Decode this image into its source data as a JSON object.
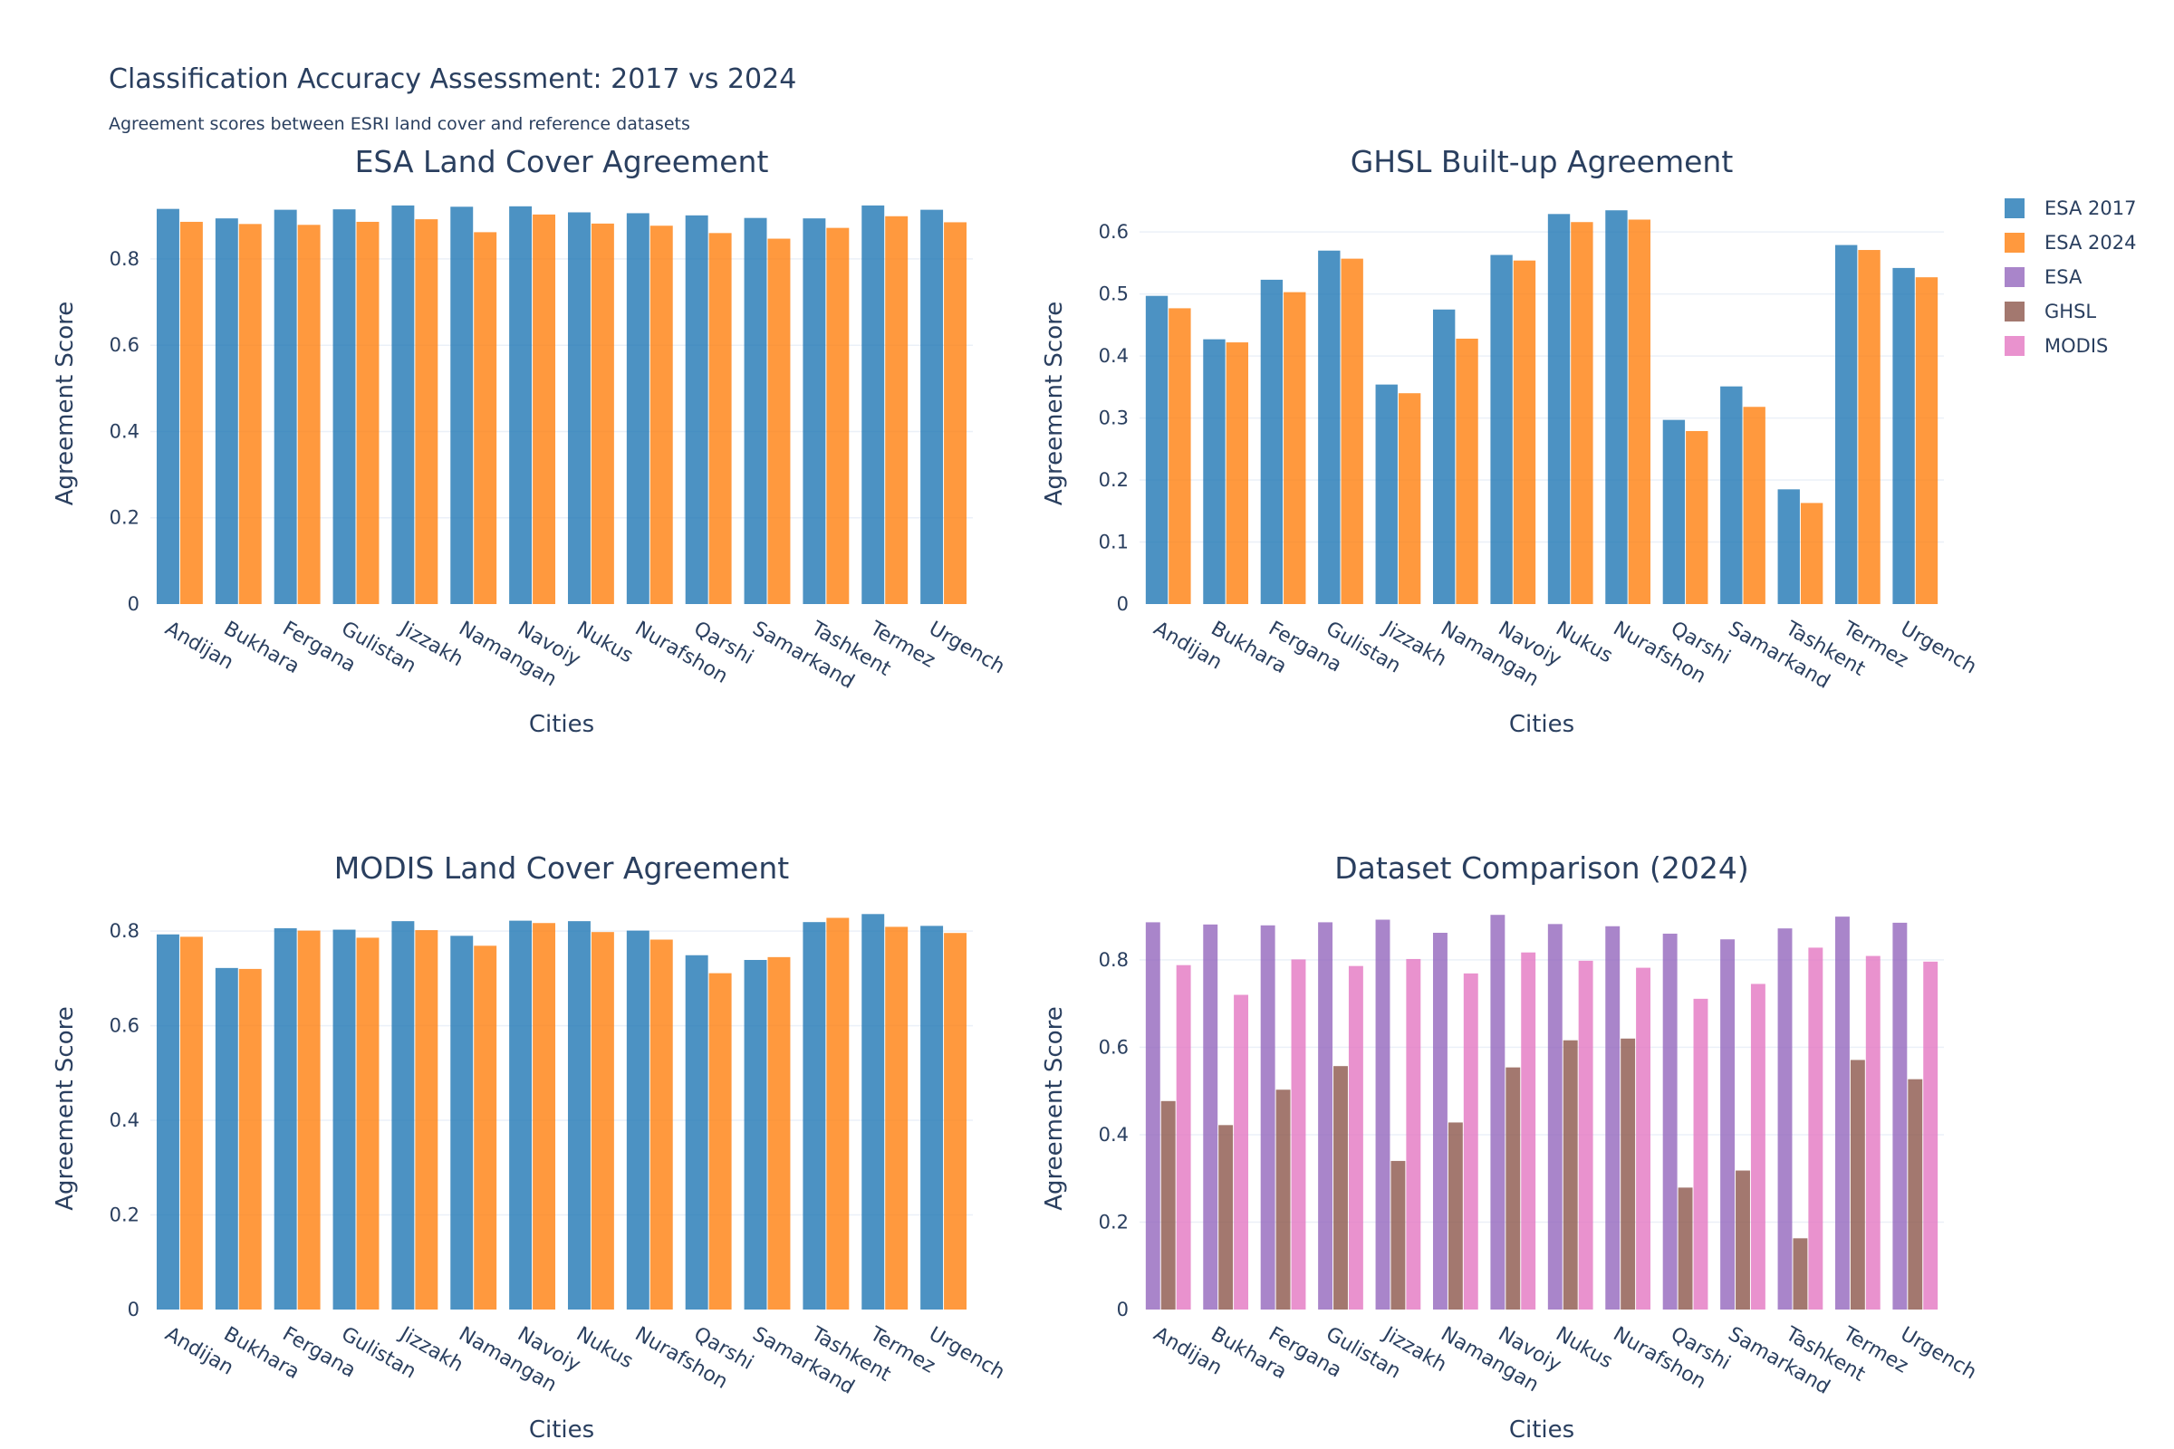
{
  "title": "Classification Accuracy Assessment: 2017 vs 2024",
  "subtitle": "Agreement scores between ESRI land cover and reference datasets",
  "colors": {
    "ESA 2017": "#1f77b4",
    "ESA 2024": "#ff7f0e",
    "ESA": "#9467bd",
    "GHSL": "#8c564b",
    "MODIS": "#e377c2"
  },
  "legend": [
    "ESA 2017",
    "ESA 2024",
    "ESA",
    "GHSL",
    "MODIS"
  ],
  "chart_data": [
    {
      "type": "bar",
      "title": "ESA Land Cover Agreement",
      "xlabel": "Cities",
      "ylabel": "Agreement Score",
      "ylim": [
        0,
        0.93
      ],
      "yticks": [
        0,
        0.2,
        0.4,
        0.6,
        0.8
      ],
      "categories": [
        "Andijan",
        "Bukhara",
        "Fergana",
        "Gulistan",
        "Jizzakh",
        "Namangan",
        "Navoiy",
        "Nukus",
        "Nurafshon",
        "Qarshi",
        "Samarkand",
        "Tashkent",
        "Termez",
        "Urgench"
      ],
      "series": [
        {
          "name": "ESA 2017",
          "values": [
            0.916,
            0.894,
            0.914,
            0.915,
            0.924,
            0.921,
            0.922,
            0.908,
            0.906,
            0.901,
            0.895,
            0.894,
            0.924,
            0.914
          ]
        },
        {
          "name": "ESA 2024",
          "values": [
            0.886,
            0.881,
            0.879,
            0.886,
            0.892,
            0.862,
            0.903,
            0.882,
            0.877,
            0.86,
            0.847,
            0.872,
            0.899,
            0.885
          ]
        }
      ]
    },
    {
      "type": "bar",
      "title": "GHSL Built-up Agreement",
      "xlabel": "Cities",
      "ylabel": "Agreement Score",
      "ylim": [
        0,
        0.647
      ],
      "yticks": [
        0,
        0.1,
        0.2,
        0.3,
        0.4,
        0.5,
        0.6
      ],
      "categories": [
        "Andijan",
        "Bukhara",
        "Fergana",
        "Gulistan",
        "Jizzakh",
        "Namangan",
        "Navoiy",
        "Nukus",
        "Nurafshon",
        "Qarshi",
        "Samarkand",
        "Tashkent",
        "Termez",
        "Urgench"
      ],
      "series": [
        {
          "name": "ESA 2017",
          "values": [
            0.497,
            0.427,
            0.523,
            0.57,
            0.354,
            0.475,
            0.563,
            0.629,
            0.635,
            0.297,
            0.351,
            0.185,
            0.579,
            0.542
          ]
        },
        {
          "name": "ESA 2024",
          "values": [
            0.477,
            0.422,
            0.503,
            0.557,
            0.34,
            0.428,
            0.554,
            0.616,
            0.62,
            0.279,
            0.318,
            0.163,
            0.571,
            0.527
          ]
        }
      ]
    },
    {
      "type": "bar",
      "title": "MODIS Land Cover Agreement",
      "xlabel": "Cities",
      "ylabel": "Agreement Score",
      "ylim": [
        0,
        0.85
      ],
      "yticks": [
        0,
        0.2,
        0.4,
        0.6,
        0.8
      ],
      "categories": [
        "Andijan",
        "Bukhara",
        "Fergana",
        "Gulistan",
        "Jizzakh",
        "Namangan",
        "Navoiy",
        "Nukus",
        "Nurafshon",
        "Qarshi",
        "Samarkand",
        "Tashkent",
        "Termez",
        "Urgench"
      ],
      "series": [
        {
          "name": "ESA 2017",
          "values": [
            0.793,
            0.722,
            0.806,
            0.803,
            0.821,
            0.79,
            0.822,
            0.821,
            0.801,
            0.749,
            0.739,
            0.819,
            0.836,
            0.811
          ]
        },
        {
          "name": "ESA 2024",
          "values": [
            0.788,
            0.72,
            0.801,
            0.786,
            0.802,
            0.769,
            0.817,
            0.798,
            0.782,
            0.711,
            0.745,
            0.828,
            0.809,
            0.796
          ]
        }
      ]
    },
    {
      "type": "bar",
      "title": "Dataset Comparison (2024)",
      "xlabel": "Cities",
      "ylabel": "Agreement Score",
      "ylim": [
        0,
        0.92
      ],
      "yticks": [
        0,
        0.2,
        0.4,
        0.6,
        0.8
      ],
      "categories": [
        "Andijan",
        "Bukhara",
        "Fergana",
        "Gulistan",
        "Jizzakh",
        "Namangan",
        "Navoiy",
        "Nukus",
        "Nurafshon",
        "Qarshi",
        "Samarkand",
        "Tashkent",
        "Termez",
        "Urgench"
      ],
      "series": [
        {
          "name": "ESA",
          "values": [
            0.886,
            0.881,
            0.879,
            0.886,
            0.892,
            0.862,
            0.903,
            0.882,
            0.877,
            0.86,
            0.847,
            0.872,
            0.899,
            0.885
          ]
        },
        {
          "name": "GHSL",
          "values": [
            0.477,
            0.422,
            0.503,
            0.557,
            0.34,
            0.428,
            0.554,
            0.616,
            0.62,
            0.279,
            0.318,
            0.163,
            0.571,
            0.527
          ]
        },
        {
          "name": "MODIS",
          "values": [
            0.788,
            0.72,
            0.801,
            0.786,
            0.802,
            0.769,
            0.817,
            0.798,
            0.782,
            0.711,
            0.745,
            0.828,
            0.809,
            0.796
          ]
        }
      ]
    }
  ]
}
